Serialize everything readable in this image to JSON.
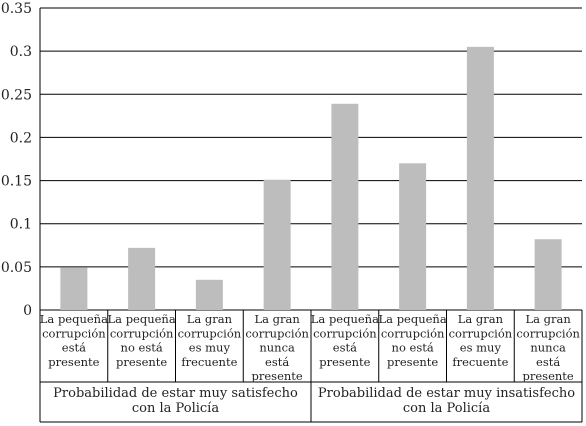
{
  "chart_data": {
    "type": "bar",
    "title": "",
    "xlabel": "",
    "ylabel": "",
    "ylim": [
      0,
      0.35
    ],
    "yticks": [
      0,
      0.05,
      0.1,
      0.15,
      0.2,
      0.25,
      0.3,
      0.35
    ],
    "ytick_labels": [
      "0",
      "0.05",
      "0.1",
      "0.15",
      "0.2",
      "0.25",
      "0.3",
      "0.35"
    ],
    "grid": "horizontal",
    "categories": [
      [
        "La pequeña",
        "corrupción",
        "está",
        "presente"
      ],
      [
        "La pequeña",
        "corrupción",
        "no está",
        "presente"
      ],
      [
        "La gran",
        "corrupción",
        "es muy",
        "frecuente"
      ],
      [
        "La gran",
        "corrupción",
        "nunca",
        "está",
        "presente"
      ],
      [
        "La pequeña",
        "corrupción",
        "está",
        "presente"
      ],
      [
        "La pequeña",
        "corrupción",
        "no está",
        "presente"
      ],
      [
        "La gran",
        "corrupción",
        "es muy",
        "frecuente"
      ],
      [
        "La gran",
        "corrupción",
        "nunca",
        "está",
        "presente"
      ]
    ],
    "values": [
      0.049,
      0.072,
      0.035,
      0.151,
      0.239,
      0.17,
      0.305,
      0.082
    ],
    "groups": [
      {
        "label": [
          "Probabilidad de estar muy satisfecho",
          "con la Policía"
        ],
        "start": 0,
        "end": 3
      },
      {
        "label": [
          "Probabilidad de estar muy insatisfecho",
          "con la Policía"
        ],
        "start": 4,
        "end": 7
      }
    ],
    "colors": {
      "bar": "#bdbdbd",
      "lines": "#000000"
    }
  }
}
